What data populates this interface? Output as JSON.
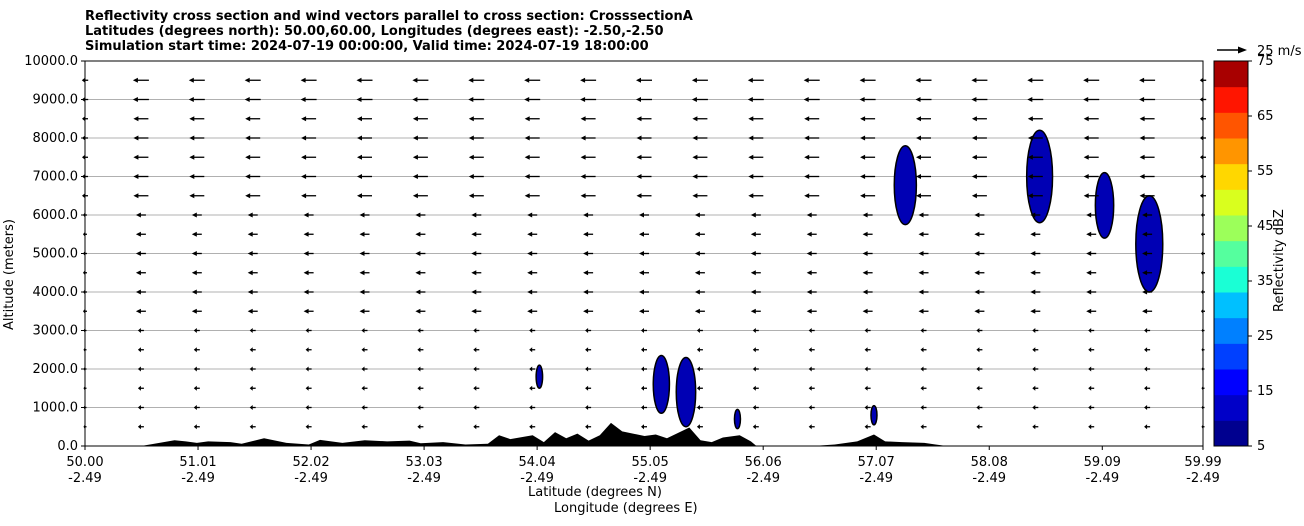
{
  "titles": {
    "line1": "Reflectivity cross section and wind vectors parallel to cross section: CrosssectionA",
    "line2": "Latitudes (degrees north): 50.00,60.00, Longitudes (degrees east): -2.50,-2.50",
    "line3": "Simulation start time: 2024-07-19 00:00:00, Valid time: 2024-07-19 18:00:00"
  },
  "chart_data": {
    "type": "heatmap",
    "ylabel": "Altitude (meters)",
    "xlabel_lat": "Latitude (degrees N)",
    "xlabel_lon": "Longitude (degrees E)",
    "ylim": [
      0,
      10000
    ],
    "xlim": [
      50.0,
      59.99
    ],
    "y_ticks": [
      "0.0",
      "1000.0",
      "2000.0",
      "3000.0",
      "4000.0",
      "5000.0",
      "6000.0",
      "7000.0",
      "8000.0",
      "9000.0",
      "10000.0"
    ],
    "x_ticks": [
      {
        "lat": "50.00",
        "lon": "-2.49"
      },
      {
        "lat": "51.01",
        "lon": "-2.49"
      },
      {
        "lat": "52.02",
        "lon": "-2.49"
      },
      {
        "lat": "53.03",
        "lon": "-2.49"
      },
      {
        "lat": "54.04",
        "lon": "-2.49"
      },
      {
        "lat": "55.05",
        "lon": "-2.49"
      },
      {
        "lat": "56.06",
        "lon": "-2.49"
      },
      {
        "lat": "57.07",
        "lon": "-2.49"
      },
      {
        "lat": "58.08",
        "lon": "-2.49"
      },
      {
        "lat": "59.09",
        "lon": "-2.49"
      },
      {
        "lat": "59.99",
        "lon": "-2.49"
      }
    ],
    "grid": "horizontal",
    "colorbar": {
      "label": "Reflectivity dBZ",
      "range": [
        5,
        75
      ],
      "tick_labels": [
        "5",
        "15",
        "25",
        "35",
        "45",
        "55",
        "65",
        "75"
      ],
      "levels": [
        5,
        10,
        15,
        20,
        25,
        30,
        35,
        40,
        45,
        50,
        55,
        60,
        65,
        70,
        75
      ],
      "colors": [
        "#00008f",
        "#0000c8",
        "#0000ff",
        "#0040ff",
        "#0080ff",
        "#00c0ff",
        "#1affd5",
        "#55ff9e",
        "#9cff5a",
        "#d9ff1e",
        "#ffd700",
        "#ff9500",
        "#ff5500",
        "#ff1500",
        "#a80000"
      ]
    },
    "wind_reference": {
      "label": "25 m/s",
      "speed": 25
    },
    "reflectivity_cells": [
      {
        "lat": 54.06,
        "alt_bottom": 1500,
        "alt_top": 2100,
        "dbz": 5
      },
      {
        "lat": 55.15,
        "alt_bottom": 850,
        "alt_top": 2350,
        "dbz": 5
      },
      {
        "lat": 55.37,
        "alt_bottom": 500,
        "alt_top": 2300,
        "dbz": 5
      },
      {
        "lat": 55.83,
        "alt_bottom": 450,
        "alt_top": 950,
        "dbz": 5
      },
      {
        "lat": 57.05,
        "alt_bottom": 550,
        "alt_top": 1050,
        "dbz": 5
      },
      {
        "lat": 57.33,
        "alt_bottom": 5750,
        "alt_top": 7800,
        "dbz": 5
      },
      {
        "lat": 58.53,
        "alt_bottom": 5800,
        "alt_top": 8200,
        "dbz": 5
      },
      {
        "lat": 59.11,
        "alt_bottom": 5400,
        "alt_top": 7100,
        "dbz": 5
      },
      {
        "lat": 59.51,
        "alt_bottom": 4000,
        "alt_top": 6500,
        "dbz": 5
      }
    ],
    "terrain": [
      [
        50.0,
        0
      ],
      [
        50.5,
        0
      ],
      [
        50.6,
        50
      ],
      [
        50.8,
        150
      ],
      [
        50.9,
        120
      ],
      [
        51.0,
        80
      ],
      [
        51.1,
        120
      ],
      [
        51.3,
        100
      ],
      [
        51.4,
        60
      ],
      [
        51.6,
        200
      ],
      [
        51.8,
        80
      ],
      [
        52.0,
        40
      ],
      [
        52.1,
        160
      ],
      [
        52.3,
        80
      ],
      [
        52.5,
        150
      ],
      [
        52.7,
        120
      ],
      [
        52.9,
        140
      ],
      [
        53.0,
        70
      ],
      [
        53.2,
        100
      ],
      [
        53.4,
        40
      ],
      [
        53.6,
        60
      ],
      [
        53.7,
        280
      ],
      [
        53.8,
        180
      ],
      [
        54.0,
        280
      ],
      [
        54.1,
        100
      ],
      [
        54.2,
        360
      ],
      [
        54.3,
        200
      ],
      [
        54.4,
        320
      ],
      [
        54.5,
        140
      ],
      [
        54.6,
        280
      ],
      [
        54.7,
        600
      ],
      [
        54.8,
        380
      ],
      [
        55.0,
        260
      ],
      [
        55.1,
        300
      ],
      [
        55.2,
        200
      ],
      [
        55.4,
        480
      ],
      [
        55.5,
        150
      ],
      [
        55.6,
        100
      ],
      [
        55.7,
        220
      ],
      [
        55.85,
        280
      ],
      [
        55.95,
        120
      ],
      [
        56.0,
        0
      ],
      [
        56.5,
        0
      ],
      [
        56.7,
        40
      ],
      [
        56.9,
        120
      ],
      [
        57.05,
        300
      ],
      [
        57.15,
        120
      ],
      [
        57.3,
        100
      ],
      [
        57.5,
        80
      ],
      [
        57.6,
        40
      ],
      [
        57.7,
        0
      ],
      [
        59.99,
        0
      ]
    ]
  }
}
